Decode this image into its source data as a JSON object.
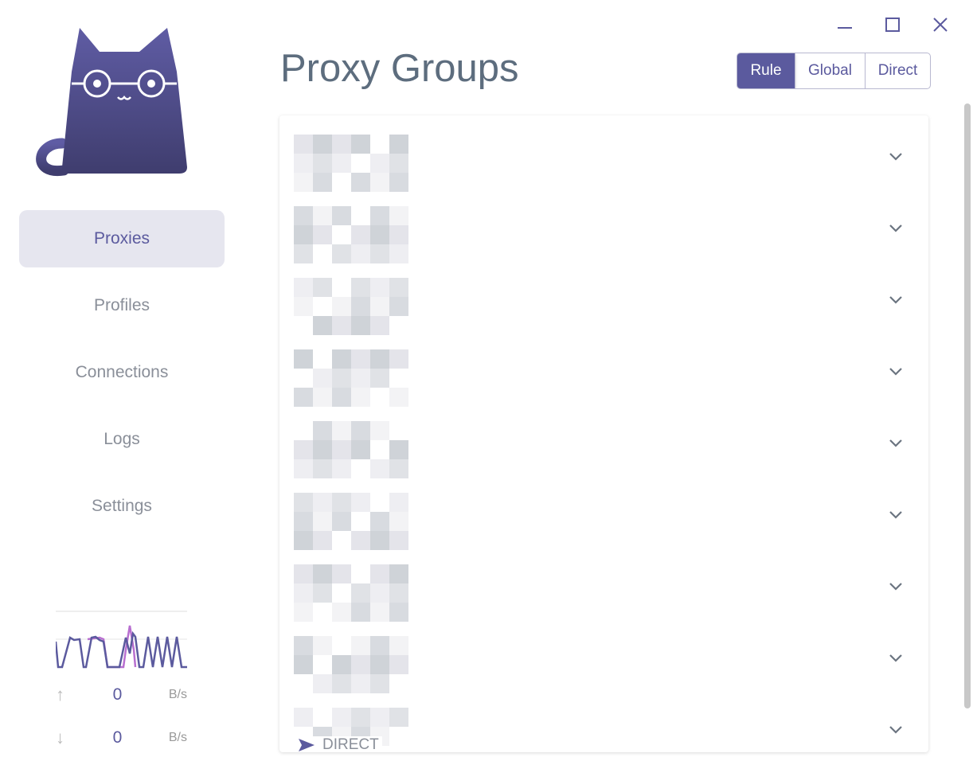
{
  "window": {
    "controls": [
      "minimize-icon",
      "maximize-icon",
      "close-icon"
    ]
  },
  "sidebar": {
    "items": [
      {
        "label": "Proxies",
        "active": true
      },
      {
        "label": "Profiles",
        "active": false
      },
      {
        "label": "Connections",
        "active": false
      },
      {
        "label": "Logs",
        "active": false
      },
      {
        "label": "Settings",
        "active": false
      }
    ],
    "traffic": {
      "upload": {
        "value": "0",
        "unit": "B/s"
      },
      "download": {
        "value": "0",
        "unit": "B/s"
      }
    }
  },
  "header": {
    "title": "Proxy Groups",
    "modes": [
      {
        "label": "Rule",
        "selected": true
      },
      {
        "label": "Global",
        "selected": false
      },
      {
        "label": "Direct",
        "selected": false
      }
    ]
  },
  "groups": {
    "count": 9,
    "last_proxy_label": "DIRECT"
  },
  "colors": {
    "accent": "#5b5a9e",
    "upload_line": "#b86fd0"
  }
}
